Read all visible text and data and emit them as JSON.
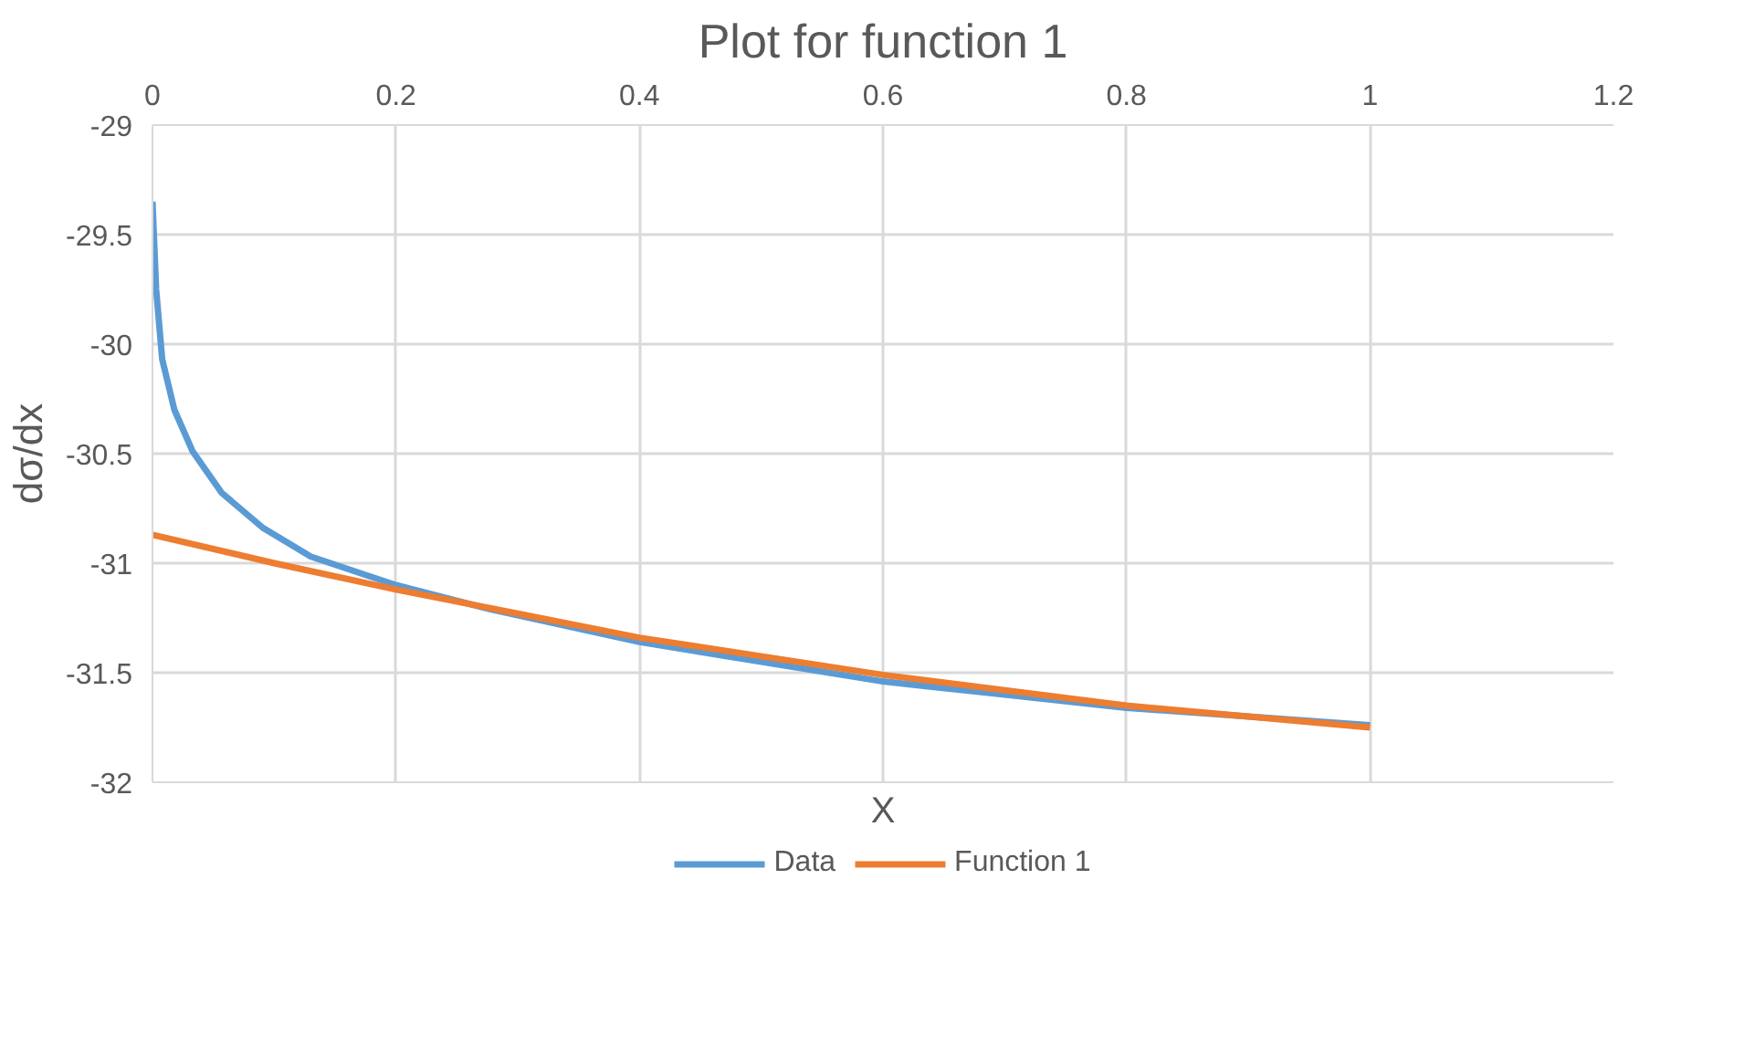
{
  "chart_data": {
    "type": "line",
    "title": "Plot for function 1",
    "xlabel": "X",
    "ylabel": "dσ/dx",
    "xlim": [
      0,
      1.2
    ],
    "xticks": [
      0,
      0.2,
      0.4,
      0.6,
      0.8,
      1,
      1.2
    ],
    "ylim": [
      -32,
      -29
    ],
    "yticks": [
      -32,
      -31.5,
      -31,
      -30.5,
      -30,
      -29.5,
      -29
    ],
    "grid": true,
    "legend": "bottom",
    "marker": "none",
    "line_style": "solid",
    "series": [
      {
        "name": "Data",
        "color": "#5b9bd5",
        "x": [
          0,
          0.003,
          0.008,
          0.018,
          0.033,
          0.057,
          0.091,
          0.13,
          0.2,
          0.277,
          0.4,
          0.6,
          0.8,
          1
        ],
        "values": [
          -29.35,
          -29.75,
          -30.07,
          -30.3,
          -30.49,
          -30.68,
          -30.84,
          -30.97,
          -31.1,
          -31.21,
          -31.36,
          -31.54,
          -31.66,
          -31.74
        ]
      },
      {
        "name": "Function 1",
        "color": "#ed7d31",
        "x": [
          0,
          0.1,
          0.2,
          0.3,
          0.4,
          0.6,
          0.8,
          1
        ],
        "values": [
          -30.87,
          -31.0,
          -31.12,
          -31.23,
          -31.34,
          -31.51,
          -31.65,
          -31.75
        ]
      }
    ]
  }
}
